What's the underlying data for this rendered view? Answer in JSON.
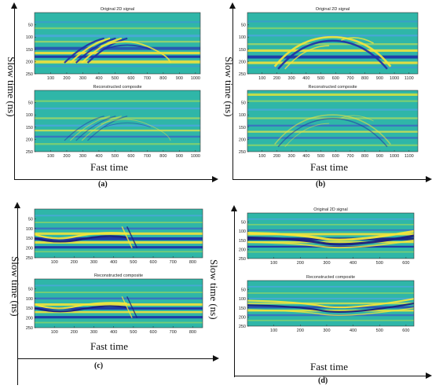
{
  "figure": {
    "panels": [
      {
        "id": "a",
        "caption": "(a)",
        "ylabel": "Slow time (ns)",
        "xlabel": "Fast time",
        "plots": [
          {
            "title": "Original 2D signal",
            "xticks": [
              "100",
              "200",
              "300",
              "400",
              "500",
              "600",
              "700",
              "800",
              "900",
              "1000"
            ],
            "yticks": [
              "50",
              "100",
              "150",
              "200",
              "250"
            ],
            "xmax": 1030,
            "ymax": 250
          },
          {
            "title": "Reconstructed composite",
            "xticks": [
              "100",
              "200",
              "300",
              "400",
              "500",
              "600",
              "700",
              "800",
              "900",
              "1000"
            ],
            "yticks": [
              "50",
              "100",
              "150",
              "200",
              "250"
            ],
            "xmax": 1030,
            "ymax": 250
          }
        ]
      },
      {
        "id": "b",
        "caption": "(b)",
        "ylabel": "Slow time (ns)",
        "xlabel": "Fast time",
        "plots": [
          {
            "title": "Original 2D signal",
            "xticks": [
              "100",
              "200",
              "300",
              "400",
              "500",
              "600",
              "700",
              "800",
              "900",
              "1000",
              "1100"
            ],
            "yticks": [
              "50",
              "100",
              "150",
              "200",
              "250"
            ],
            "xmax": 1160,
            "ymax": 250
          },
          {
            "title": "Reconstructed composite",
            "xticks": [
              "100",
              "200",
              "300",
              "400",
              "500",
              "600",
              "700",
              "800",
              "900",
              "1000",
              "1100"
            ],
            "yticks": [
              "50",
              "100",
              "150",
              "200",
              "250"
            ],
            "xmax": 1160,
            "ymax": 250
          }
        ]
      },
      {
        "id": "c",
        "caption": "(c)",
        "ylabel": "Slow time (ns)",
        "xlabel": "Fast time",
        "plots": [
          {
            "title": "",
            "xticks": [
              "100",
              "200",
              "300",
              "400",
              "500",
              "600",
              "700",
              "800"
            ],
            "yticks": [
              "50",
              "100",
              "150",
              "200",
              "250"
            ],
            "xmax": 850,
            "ymax": 250
          },
          {
            "title": "Reconstructed composite",
            "xticks": [
              "100",
              "200",
              "300",
              "400",
              "500",
              "600",
              "700",
              "800"
            ],
            "yticks": [
              "50",
              "100",
              "150",
              "200",
              "250"
            ],
            "xmax": 850,
            "ymax": 250
          }
        ]
      },
      {
        "id": "d",
        "caption": "(d)",
        "ylabel": "Slow time (ns)",
        "xlabel": "Fast time",
        "plots": [
          {
            "title": "Original 2D signal",
            "xticks": [
              "100",
              "200",
              "300",
              "400",
              "500",
              "600"
            ],
            "yticks": [
              "50",
              "100",
              "150",
              "200",
              "250"
            ],
            "xmax": 630,
            "ymax": 250
          },
          {
            "title": "Reconstructed composite",
            "xticks": [
              "100",
              "200",
              "300",
              "400",
              "500",
              "600"
            ],
            "yticks": [
              "50",
              "100",
              "150",
              "200",
              "250"
            ],
            "xmax": 630,
            "ymax": 250
          }
        ]
      }
    ],
    "colors": {
      "background": "#2fb6a8",
      "yellow": "#f6e63a",
      "blue": "#1f2fa6",
      "deepblue": "#1b1f80",
      "axis": "#111111"
    }
  }
}
